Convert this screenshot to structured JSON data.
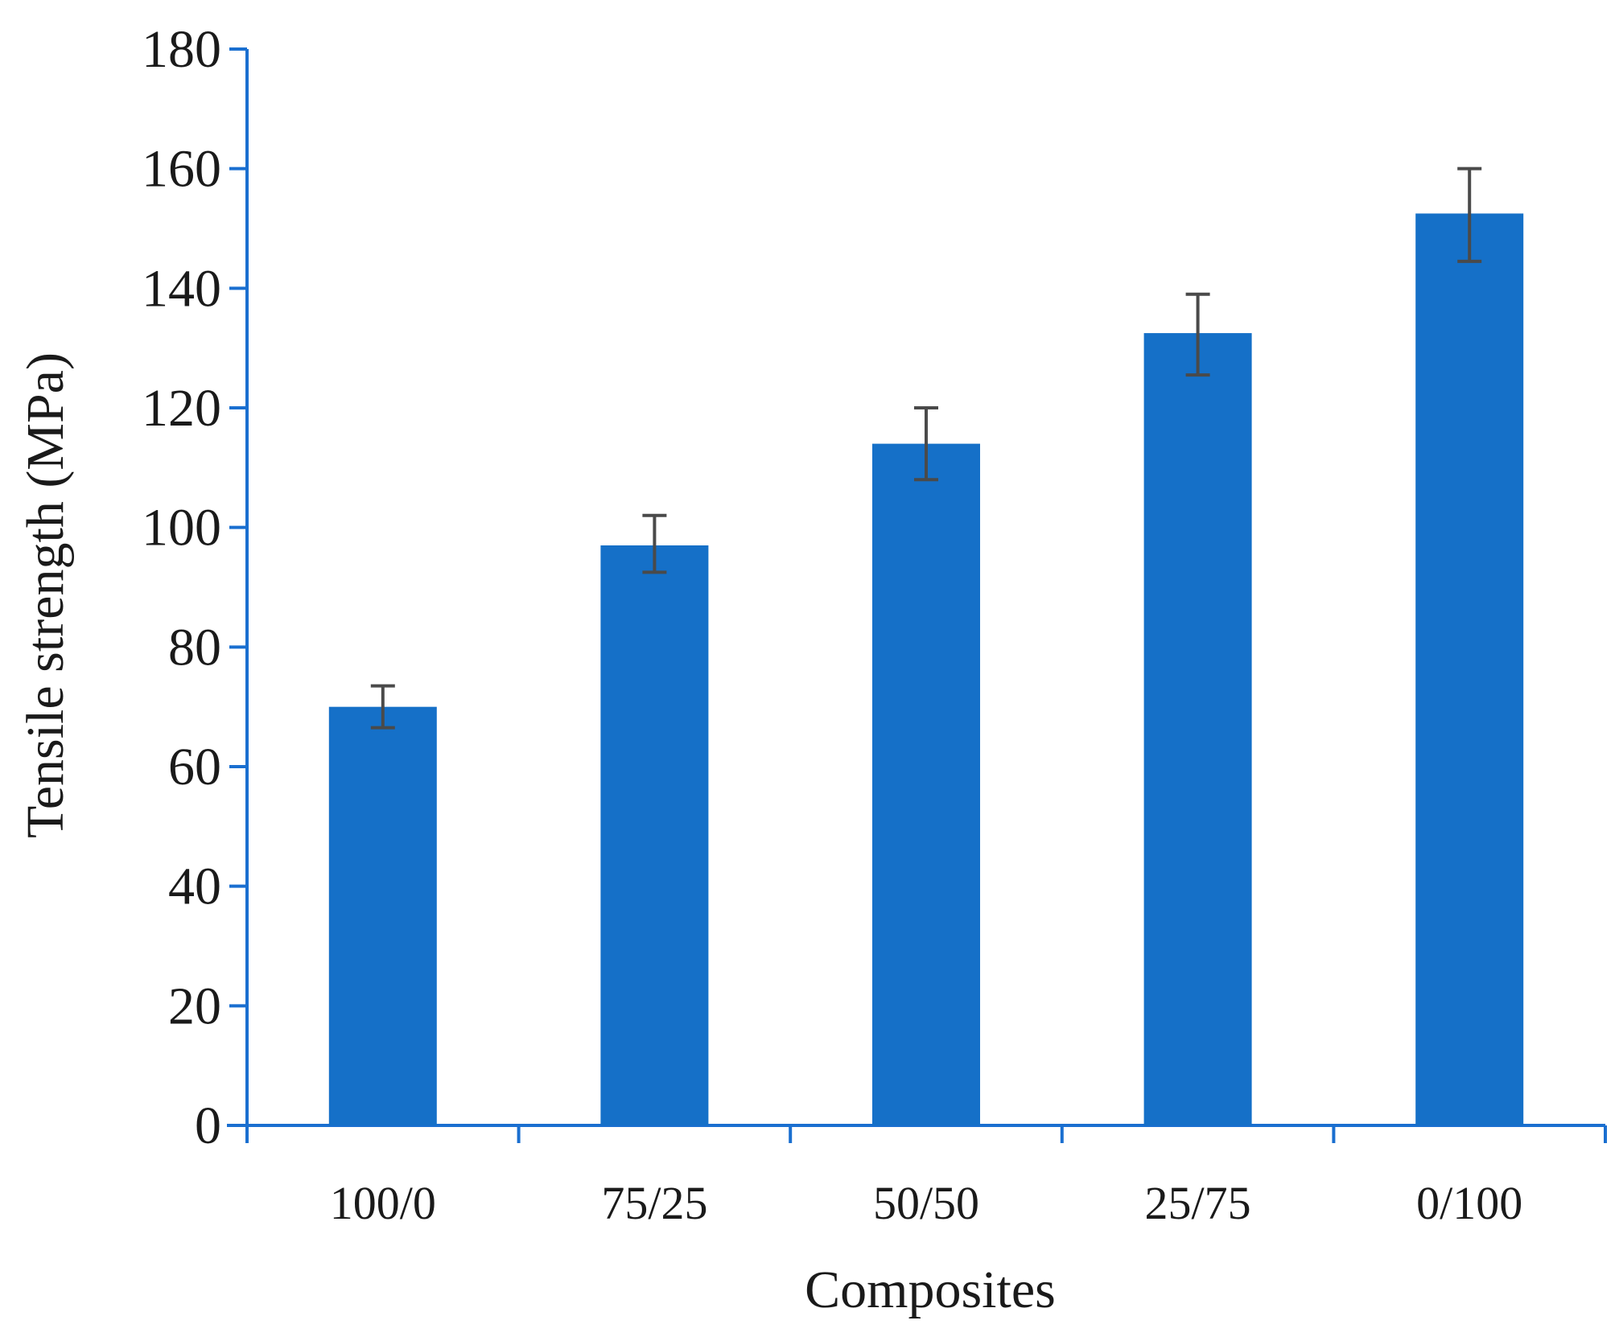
{
  "colors": {
    "bar": "#1570c8",
    "axis": "#1a6fd0",
    "error_bar": "#4a4a4a",
    "text": "#1a1a1a"
  },
  "chart_data": {
    "type": "bar",
    "categories": [
      "100/0",
      "75/25",
      "50/50",
      "25/75",
      "0/100"
    ],
    "values": [
      70,
      97,
      114,
      132.5,
      152.5
    ],
    "error_low": [
      66.5,
      92.5,
      108,
      125.5,
      144.5
    ],
    "error_high": [
      73.5,
      102,
      120,
      139,
      160
    ],
    "xlabel": "Composites",
    "ylabel": "Tensile strength (MPa)",
    "ylim": [
      0,
      180
    ],
    "yticks": [
      0,
      20,
      40,
      60,
      80,
      100,
      120,
      140,
      160,
      180
    ],
    "grid": false,
    "legend": "none"
  }
}
